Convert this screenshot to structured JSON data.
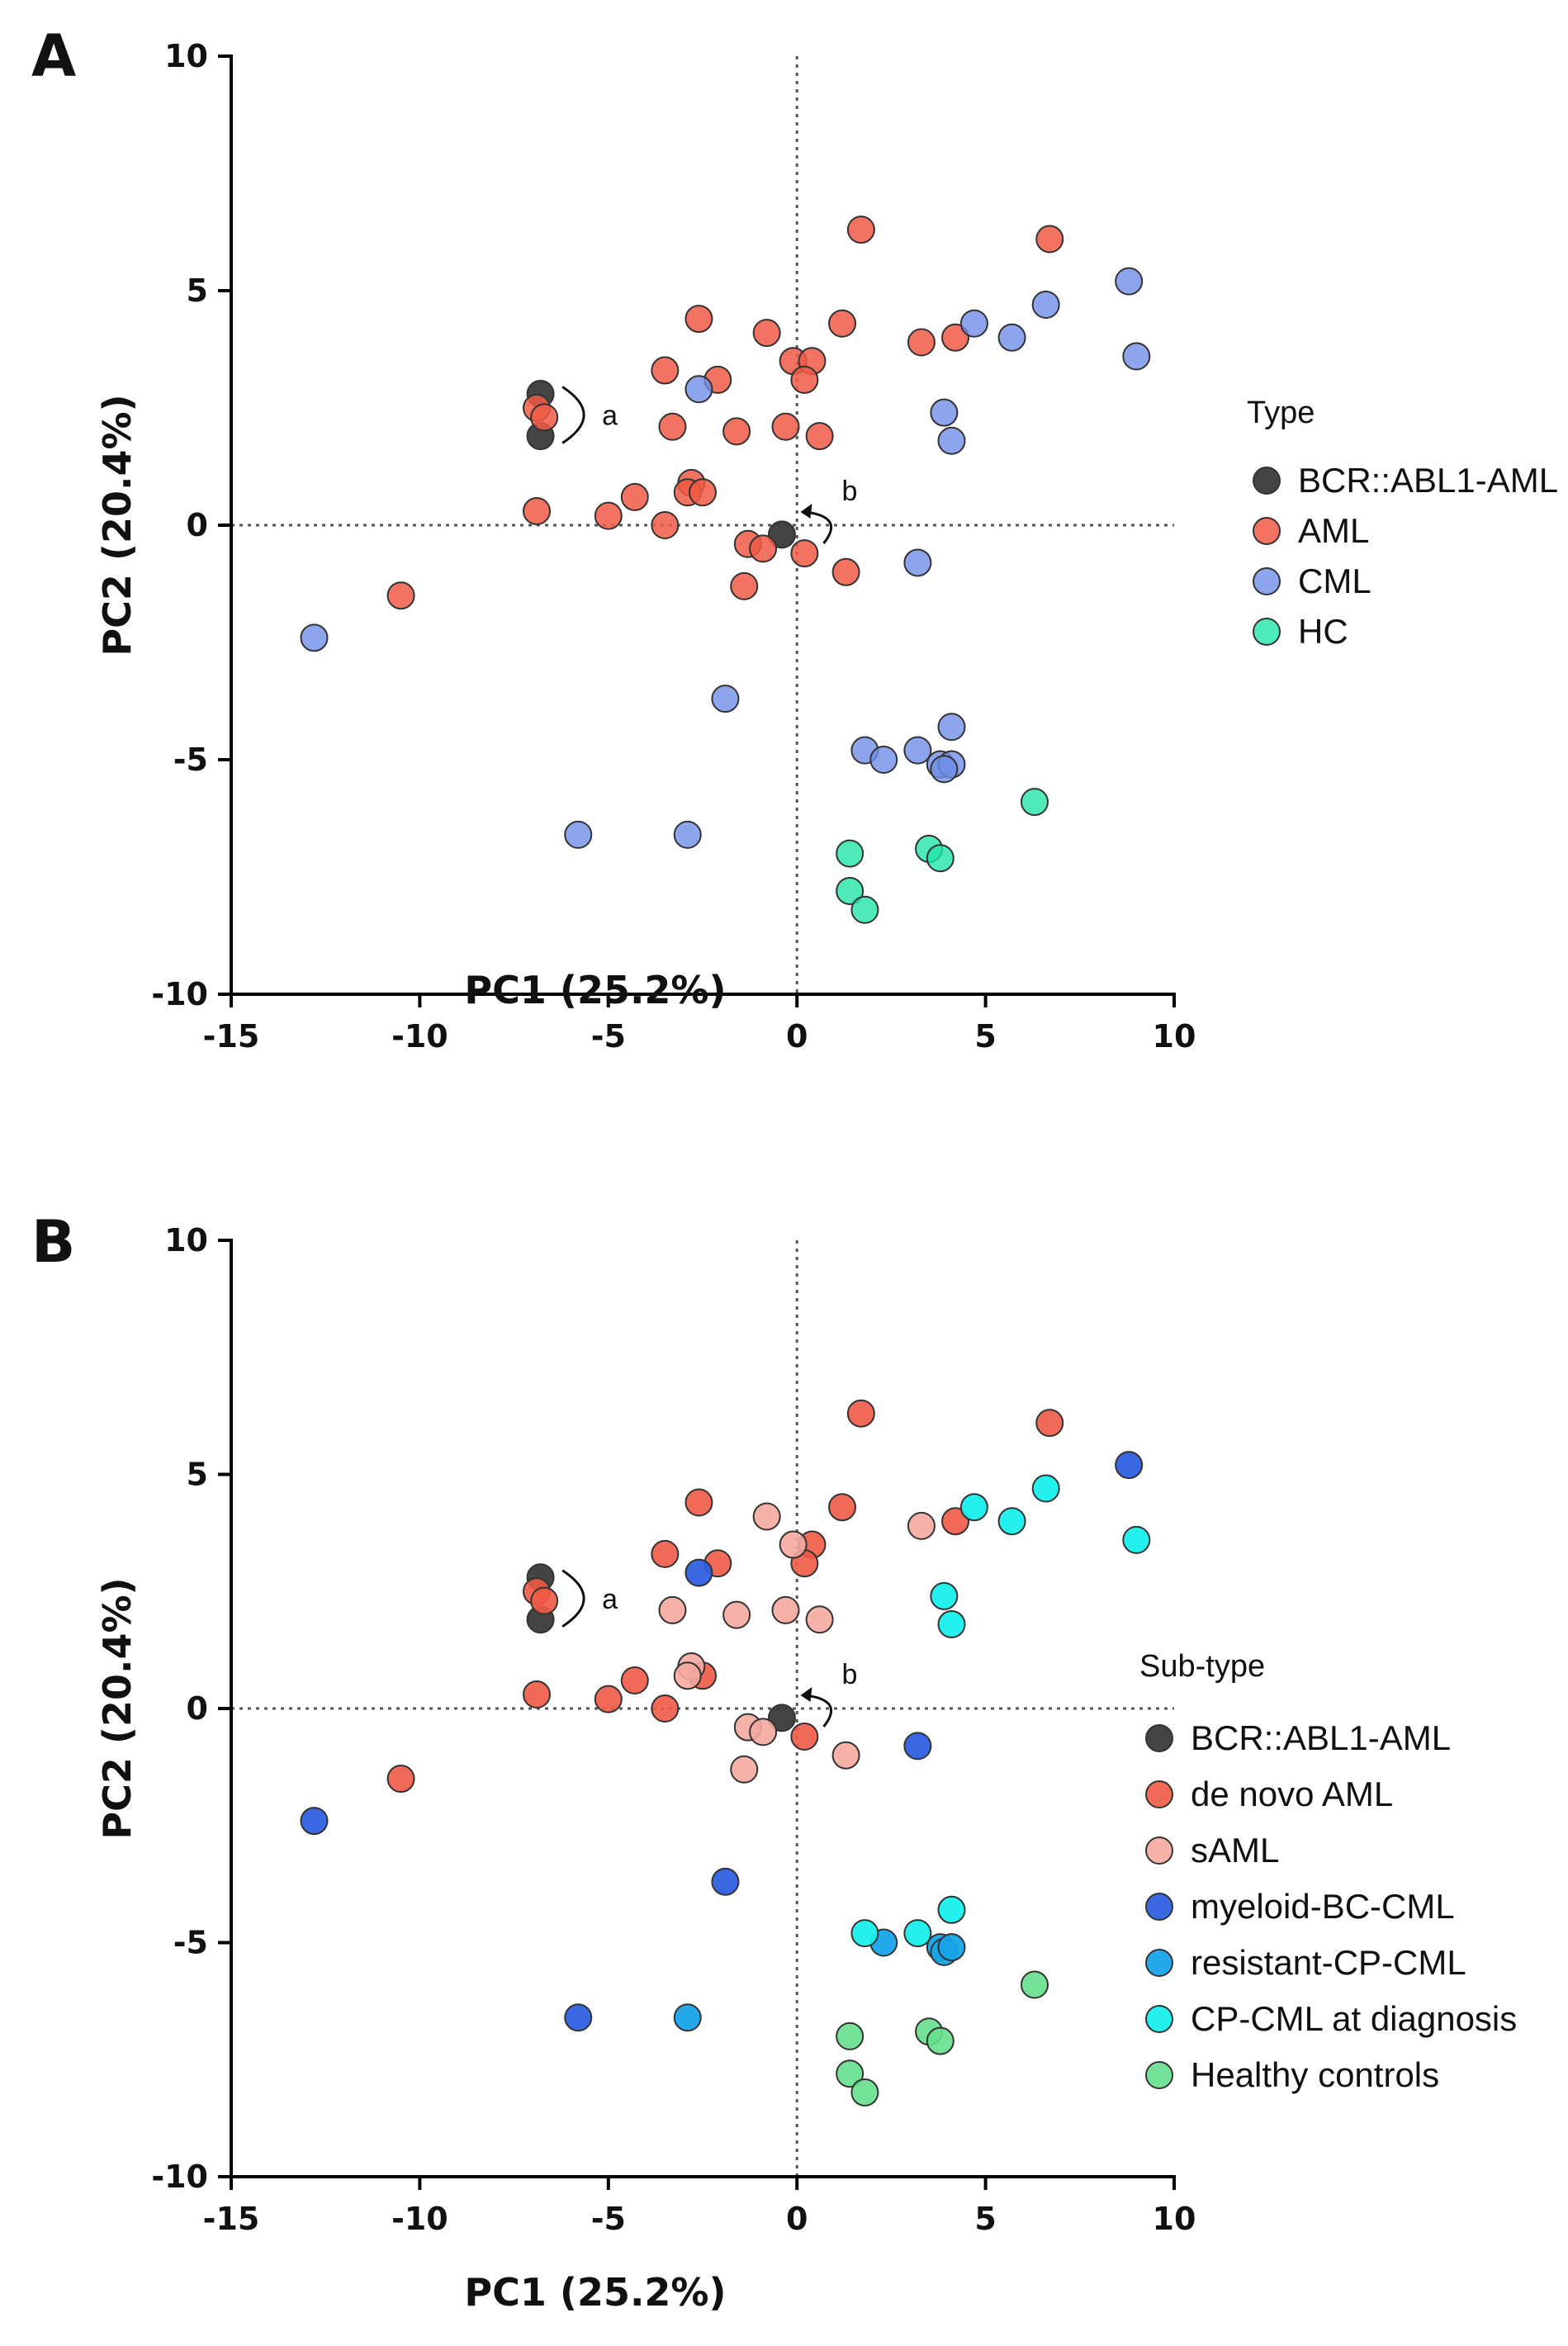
{
  "figure": {
    "panels": [
      {
        "letter": "A",
        "chart_data": {
          "type": "scatter",
          "title": "",
          "xlabel": "PC1  (25.2%)",
          "ylabel": "PC2 (20.4%)",
          "xlim": [
            -15,
            10
          ],
          "ylim": [
            -10,
            10
          ],
          "xticks": [
            "-15",
            "-10",
            "-5",
            "0",
            "5",
            "10"
          ],
          "yticks": [
            "-10",
            "-5",
            "0",
            "5",
            "10"
          ],
          "xtick_values": [
            -15,
            -10,
            -5,
            0,
            5,
            10
          ],
          "ytick_values": [
            -10,
            -5,
            0,
            5,
            10
          ],
          "zero_lines": true,
          "legend_title": "Type",
          "legend_position": "right",
          "annotations": [
            {
              "label": "a",
              "at": [
                -6.7,
                2.35
              ]
            },
            {
              "label": "b",
              "at": [
                0.4,
                0.0
              ]
            }
          ],
          "series": [
            {
              "name": "BCR::ABL1-AML",
              "color": "#3a3a3a",
              "opacity": 0.95,
              "x": [
                -6.8,
                -6.8,
                -0.4
              ],
              "y": [
                2.8,
                1.9,
                -0.2
              ]
            },
            {
              "name": "AML",
              "color": "#f05a45",
              "opacity": 0.85,
              "x": [
                1.7,
                6.7,
                -2.6,
                -0.8,
                1.2,
                3.3,
                4.2,
                -3.5,
                -2.1,
                -0.1,
                0.4,
                0.2,
                -6.9,
                -6.7,
                -3.3,
                -1.6,
                -0.3,
                0.6,
                -2.8,
                -2.9,
                -2.5,
                -4.3,
                -6.9,
                -5.0,
                -3.5,
                -10.5,
                -1.3,
                -0.9,
                -1.4,
                0.2,
                1.3
              ],
              "y": [
                6.3,
                6.1,
                4.4,
                4.1,
                4.3,
                3.9,
                4.0,
                3.3,
                3.1,
                3.5,
                3.5,
                3.1,
                2.5,
                2.3,
                2.1,
                2.0,
                2.1,
                1.9,
                0.9,
                0.7,
                0.7,
                0.6,
                0.3,
                0.2,
                0.0,
                -1.5,
                -0.4,
                -0.5,
                -1.3,
                -0.6,
                -1.0
              ]
            },
            {
              "name": "CML",
              "color": "#6f8ee8",
              "opacity": 0.8,
              "x": [
                8.8,
                9.0,
                6.6,
                4.7,
                5.7,
                -2.6,
                3.9,
                4.1,
                3.2,
                -12.8,
                -1.9,
                1.8,
                2.3,
                3.2,
                3.8,
                4.1,
                4.1,
                3.9,
                -5.8,
                -2.9
              ],
              "y": [
                5.2,
                3.6,
                4.7,
                4.3,
                4.0,
                2.9,
                2.4,
                1.8,
                -0.8,
                -2.4,
                -3.7,
                -4.8,
                -5.0,
                -4.8,
                -5.1,
                -4.3,
                -5.1,
                -5.2,
                -6.6,
                -6.6
              ]
            },
            {
              "name": "HC",
              "color": "#22e6a8",
              "opacity": 0.8,
              "x": [
                6.3,
                1.4,
                3.5,
                3.8,
                1.4,
                1.8
              ],
              "y": [
                -5.9,
                -7.0,
                -6.9,
                -7.1,
                -7.8,
                -8.2
              ]
            }
          ]
        }
      },
      {
        "letter": "B",
        "chart_data": {
          "type": "scatter",
          "title": "",
          "xlabel": "PC1 (25.2%)",
          "ylabel": "PC2 (20.4%)",
          "xlim": [
            -15,
            10
          ],
          "ylim": [
            -10,
            10
          ],
          "xticks": [
            "-15",
            "-10",
            "-5",
            "0",
            "5",
            "10"
          ],
          "yticks": [
            "-10",
            "-5",
            "0",
            "5",
            "10"
          ],
          "xtick_values": [
            -15,
            -10,
            -5,
            0,
            5,
            10
          ],
          "ytick_values": [
            -10,
            -5,
            0,
            5,
            10
          ],
          "zero_lines": true,
          "legend_title": "Sub-type",
          "legend_position": "right",
          "annotations": [
            {
              "label": "a",
              "at": [
                -6.7,
                2.35
              ]
            },
            {
              "label": "b",
              "at": [
                0.4,
                0.0
              ]
            }
          ],
          "series": [
            {
              "name": "BCR::ABL1-AML",
              "color": "#3a3a3a",
              "opacity": 0.95,
              "x": [
                -6.8,
                -6.8,
                -0.4
              ],
              "y": [
                2.8,
                1.9,
                -0.2
              ]
            },
            {
              "name": "de novo AML",
              "color": "#f05a45",
              "opacity": 0.9,
              "x": [
                1.7,
                6.7,
                -2.6,
                1.2,
                4.2,
                -3.5,
                -2.1,
                0.4,
                0.2,
                -6.9,
                -6.7,
                -2.5,
                -4.3,
                -6.9,
                -5.0,
                -3.5,
                -10.5,
                0.2
              ],
              "y": [
                6.3,
                6.1,
                4.4,
                4.3,
                4.0,
                3.3,
                3.1,
                3.5,
                3.1,
                2.5,
                2.3,
                0.7,
                0.6,
                0.3,
                0.2,
                0.0,
                -1.5,
                -0.6
              ]
            },
            {
              "name": "sAML",
              "color": "#f5a8a0",
              "opacity": 0.9,
              "x": [
                -0.8,
                3.3,
                -0.1,
                -3.3,
                -1.6,
                -0.3,
                0.6,
                -2.8,
                -2.9,
                -1.3,
                -0.9,
                -1.4,
                1.3
              ],
              "y": [
                4.1,
                3.9,
                3.5,
                2.1,
                2.0,
                2.1,
                1.9,
                0.9,
                0.7,
                -0.4,
                -0.5,
                -1.3,
                -1.0
              ]
            },
            {
              "name": "myeloid-BC-CML",
              "color": "#2f5fe0",
              "opacity": 0.95,
              "x": [
                8.8,
                -2.6,
                3.2,
                -12.8,
                -1.9,
                -5.8
              ],
              "y": [
                5.2,
                2.9,
                -0.8,
                -2.4,
                -3.7,
                -6.6
              ]
            },
            {
              "name": "resistant-CP-CML",
              "color": "#17a4e8",
              "opacity": 0.95,
              "x": [
                2.3,
                3.8,
                3.9,
                -2.9,
                4.1
              ],
              "y": [
                -5.0,
                -5.1,
                -5.2,
                -6.6,
                -5.1
              ]
            },
            {
              "name": "CP-CML at diagnosis",
              "color": "#18f0ec",
              "opacity": 0.95,
              "x": [
                9.0,
                6.6,
                4.7,
                5.7,
                3.9,
                4.1,
                1.8,
                3.2,
                4.1
              ],
              "y": [
                3.6,
                4.7,
                4.3,
                4.0,
                2.4,
                1.8,
                -4.8,
                -4.8,
                -4.3
              ]
            },
            {
              "name": "Healthy controls",
              "color": "#66e08c",
              "opacity": 0.9,
              "x": [
                6.3,
                1.4,
                3.5,
                3.8,
                1.4,
                1.8
              ],
              "y": [
                -5.9,
                -7.0,
                -6.9,
                -7.1,
                -7.8,
                -8.2
              ]
            }
          ]
        }
      }
    ]
  }
}
